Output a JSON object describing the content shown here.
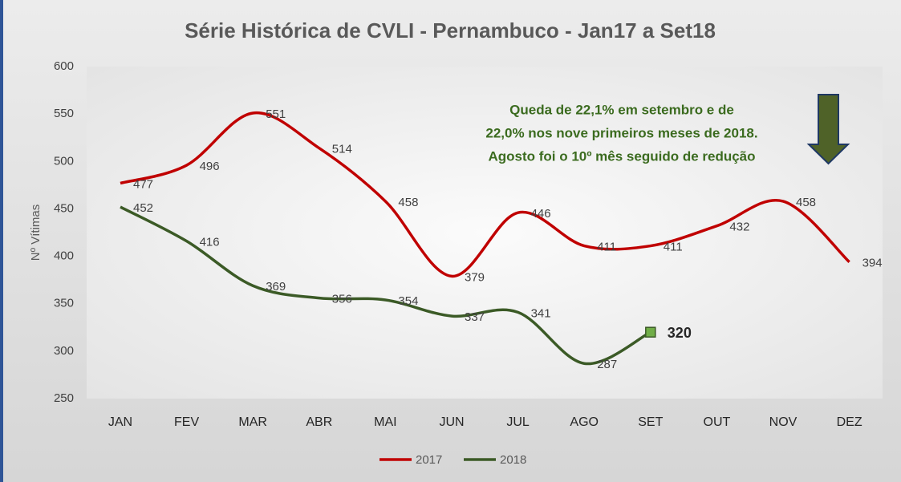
{
  "chart_data": {
    "type": "line",
    "title": "Série Histórica de CVLI - Pernambuco - Jan17 a Set18",
    "y_label": "Nº Vítimas",
    "annotation": [
      "Queda de 22,1% em setembro e de",
      "22,0% nos nove primeiros meses de 2018.",
      "Agosto foi o 10º mês seguido de redução"
    ],
    "categories": [
      "JAN",
      "FEV",
      "MAR",
      "ABR",
      "MAI",
      "JUN",
      "JUL",
      "AGO",
      "SET",
      "OUT",
      "NOV",
      "DEZ"
    ],
    "series": [
      {
        "name": "2017",
        "color": "#c00000",
        "values": [
          477,
          496,
          551,
          514,
          458,
          379,
          446,
          411,
          411,
          432,
          458,
          394
        ]
      },
      {
        "name": "2018",
        "color": "#3b5a26",
        "values": [
          452,
          416,
          369,
          356,
          354,
          337,
          341,
          287,
          320,
          null,
          null,
          null
        ]
      }
    ],
    "ylim": [
      250,
      600
    ],
    "yticks": [
      250,
      300,
      350,
      400,
      450,
      500,
      550,
      600
    ],
    "grid": false,
    "legend": "bottom"
  }
}
